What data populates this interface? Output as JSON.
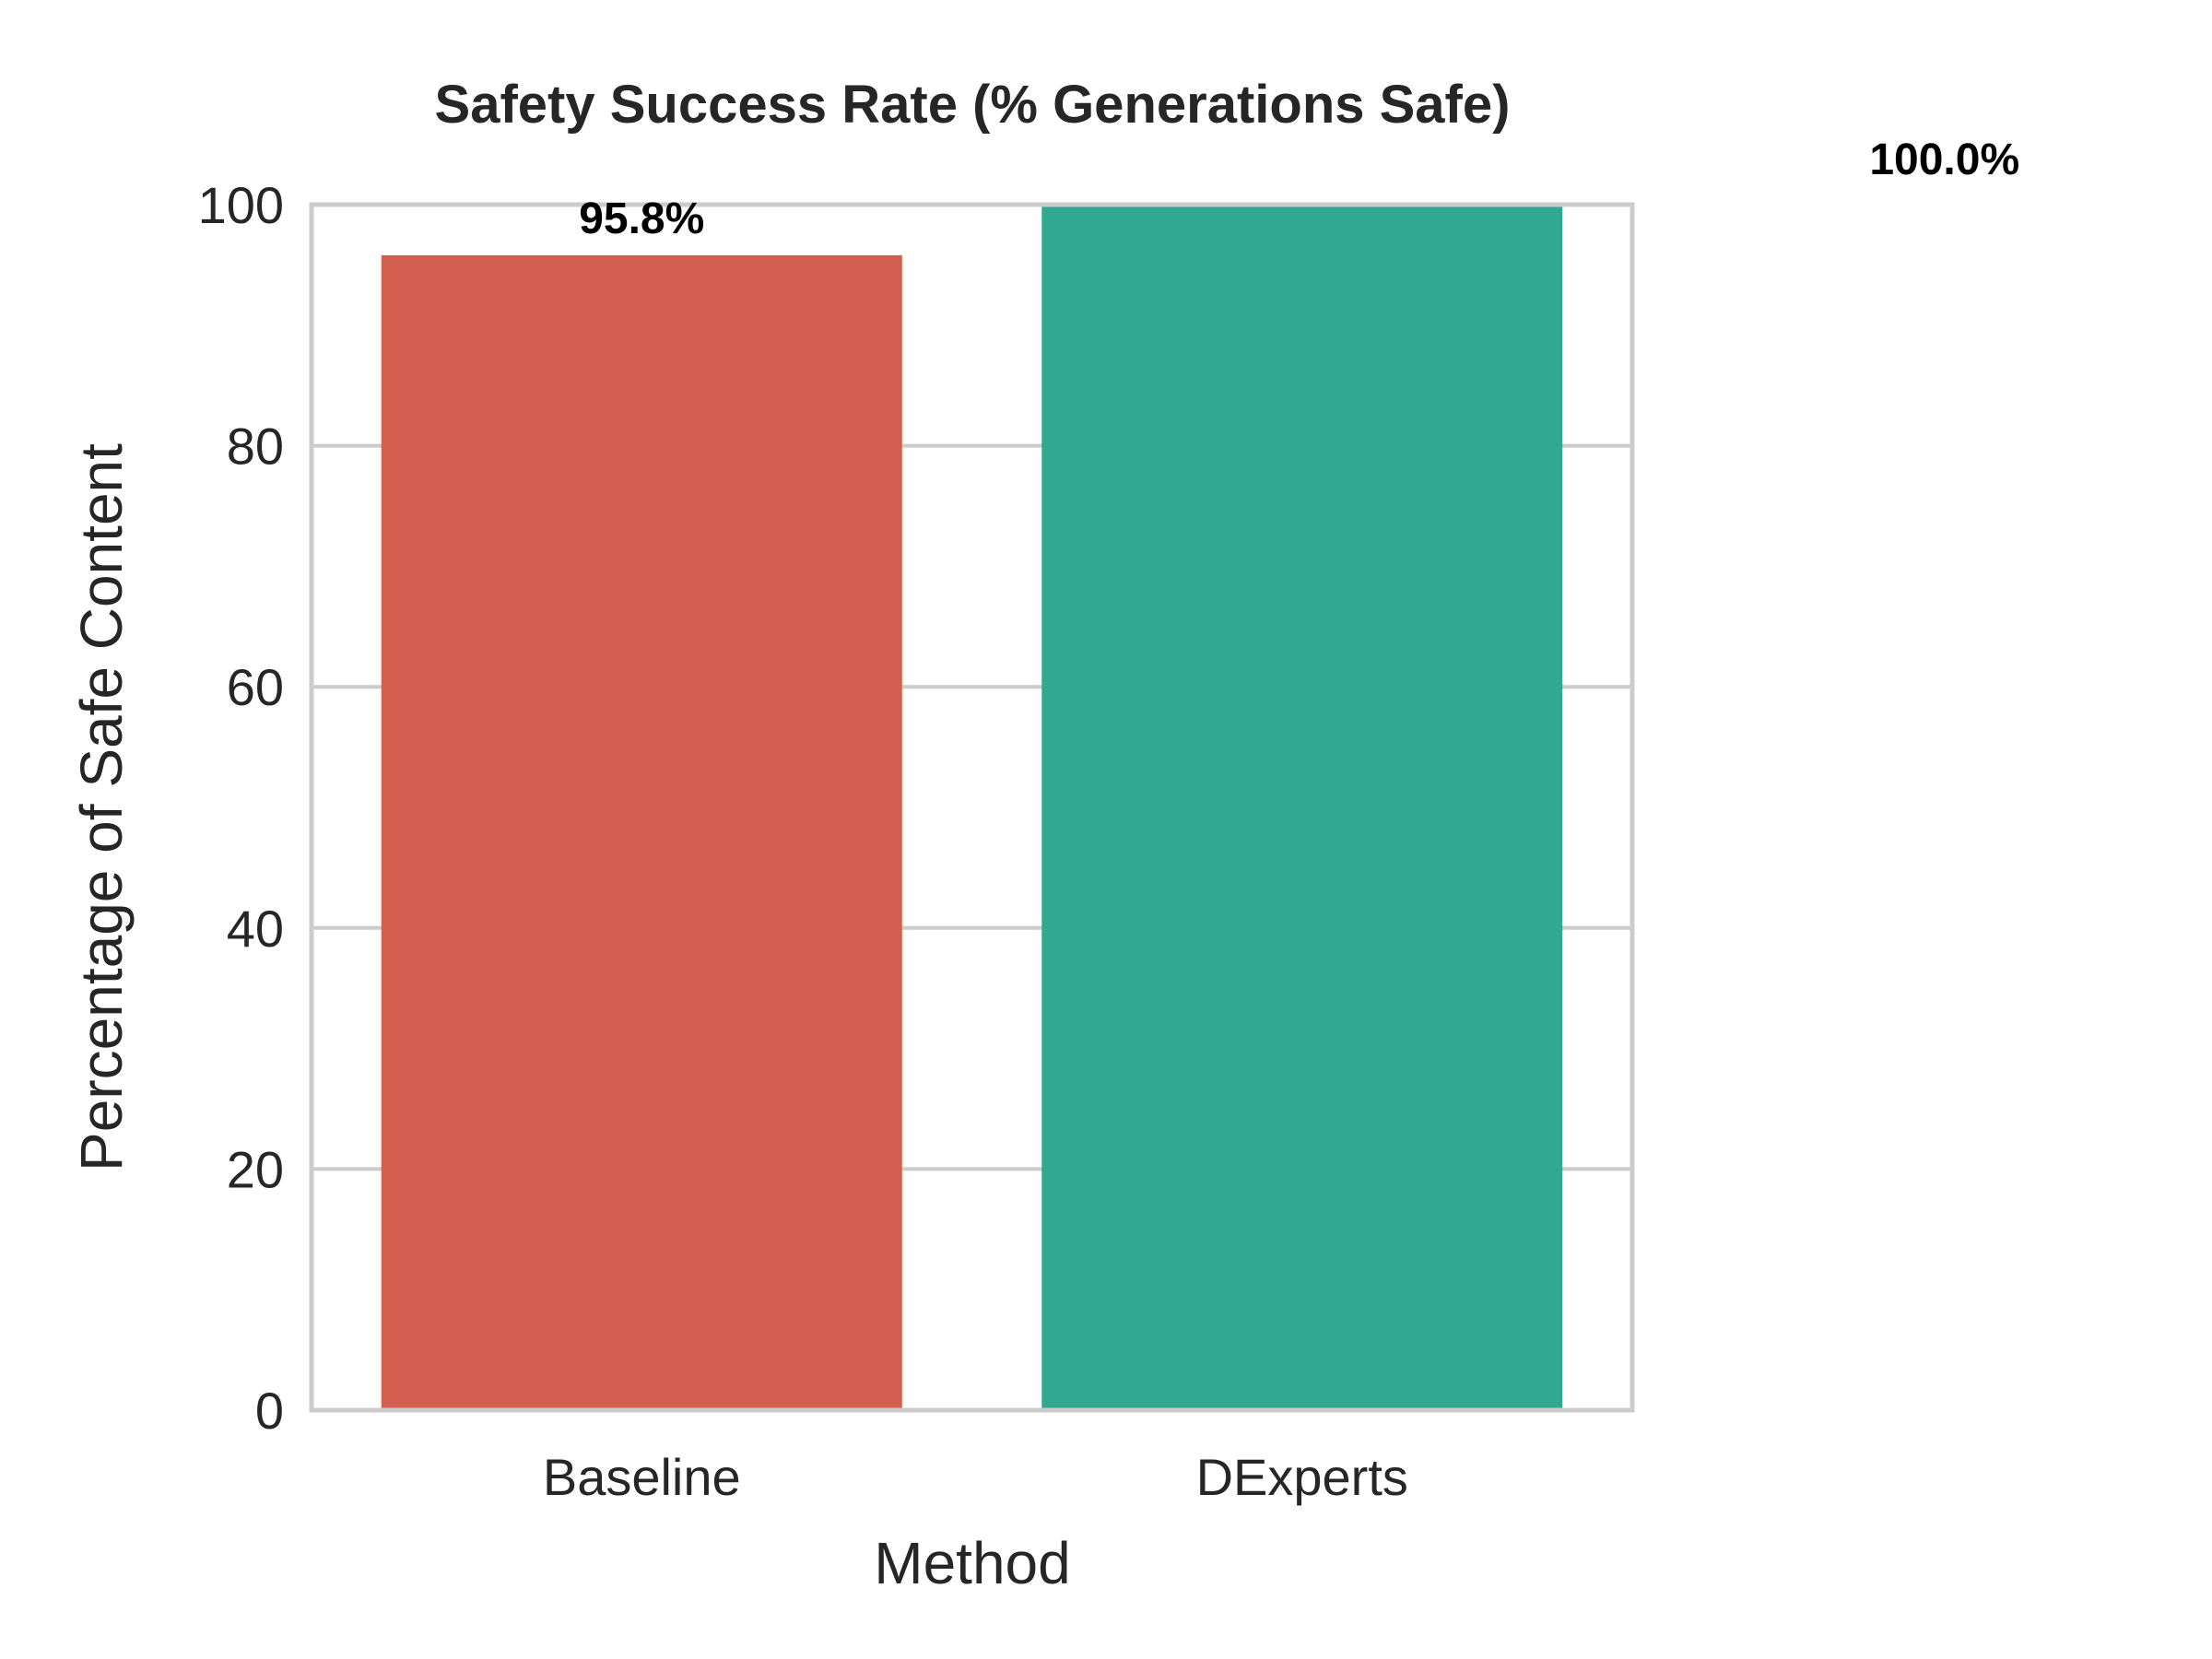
{
  "chart_data": {
    "type": "bar",
    "title": "Safety Success Rate (% Generations Safe)",
    "xlabel": "Method",
    "ylabel": "Percentage of Safe Content",
    "categories": [
      "Baseline",
      "DExperts"
    ],
    "values": [
      95.8,
      100.0
    ],
    "data_labels": [
      "95.8%",
      "100.0%"
    ],
    "ylim": [
      0,
      100
    ],
    "yticks": [
      0,
      20,
      40,
      60,
      80,
      100
    ],
    "ytick_labels": [
      "0",
      "20",
      "40",
      "60",
      "80",
      "100"
    ],
    "grid": true,
    "colors": {
      "bars": [
        "#d35f51",
        "#33a891"
      ],
      "frame": "#cccccc",
      "grid": "#cccccc",
      "text": "#262626",
      "data_label": "#000000"
    }
  }
}
